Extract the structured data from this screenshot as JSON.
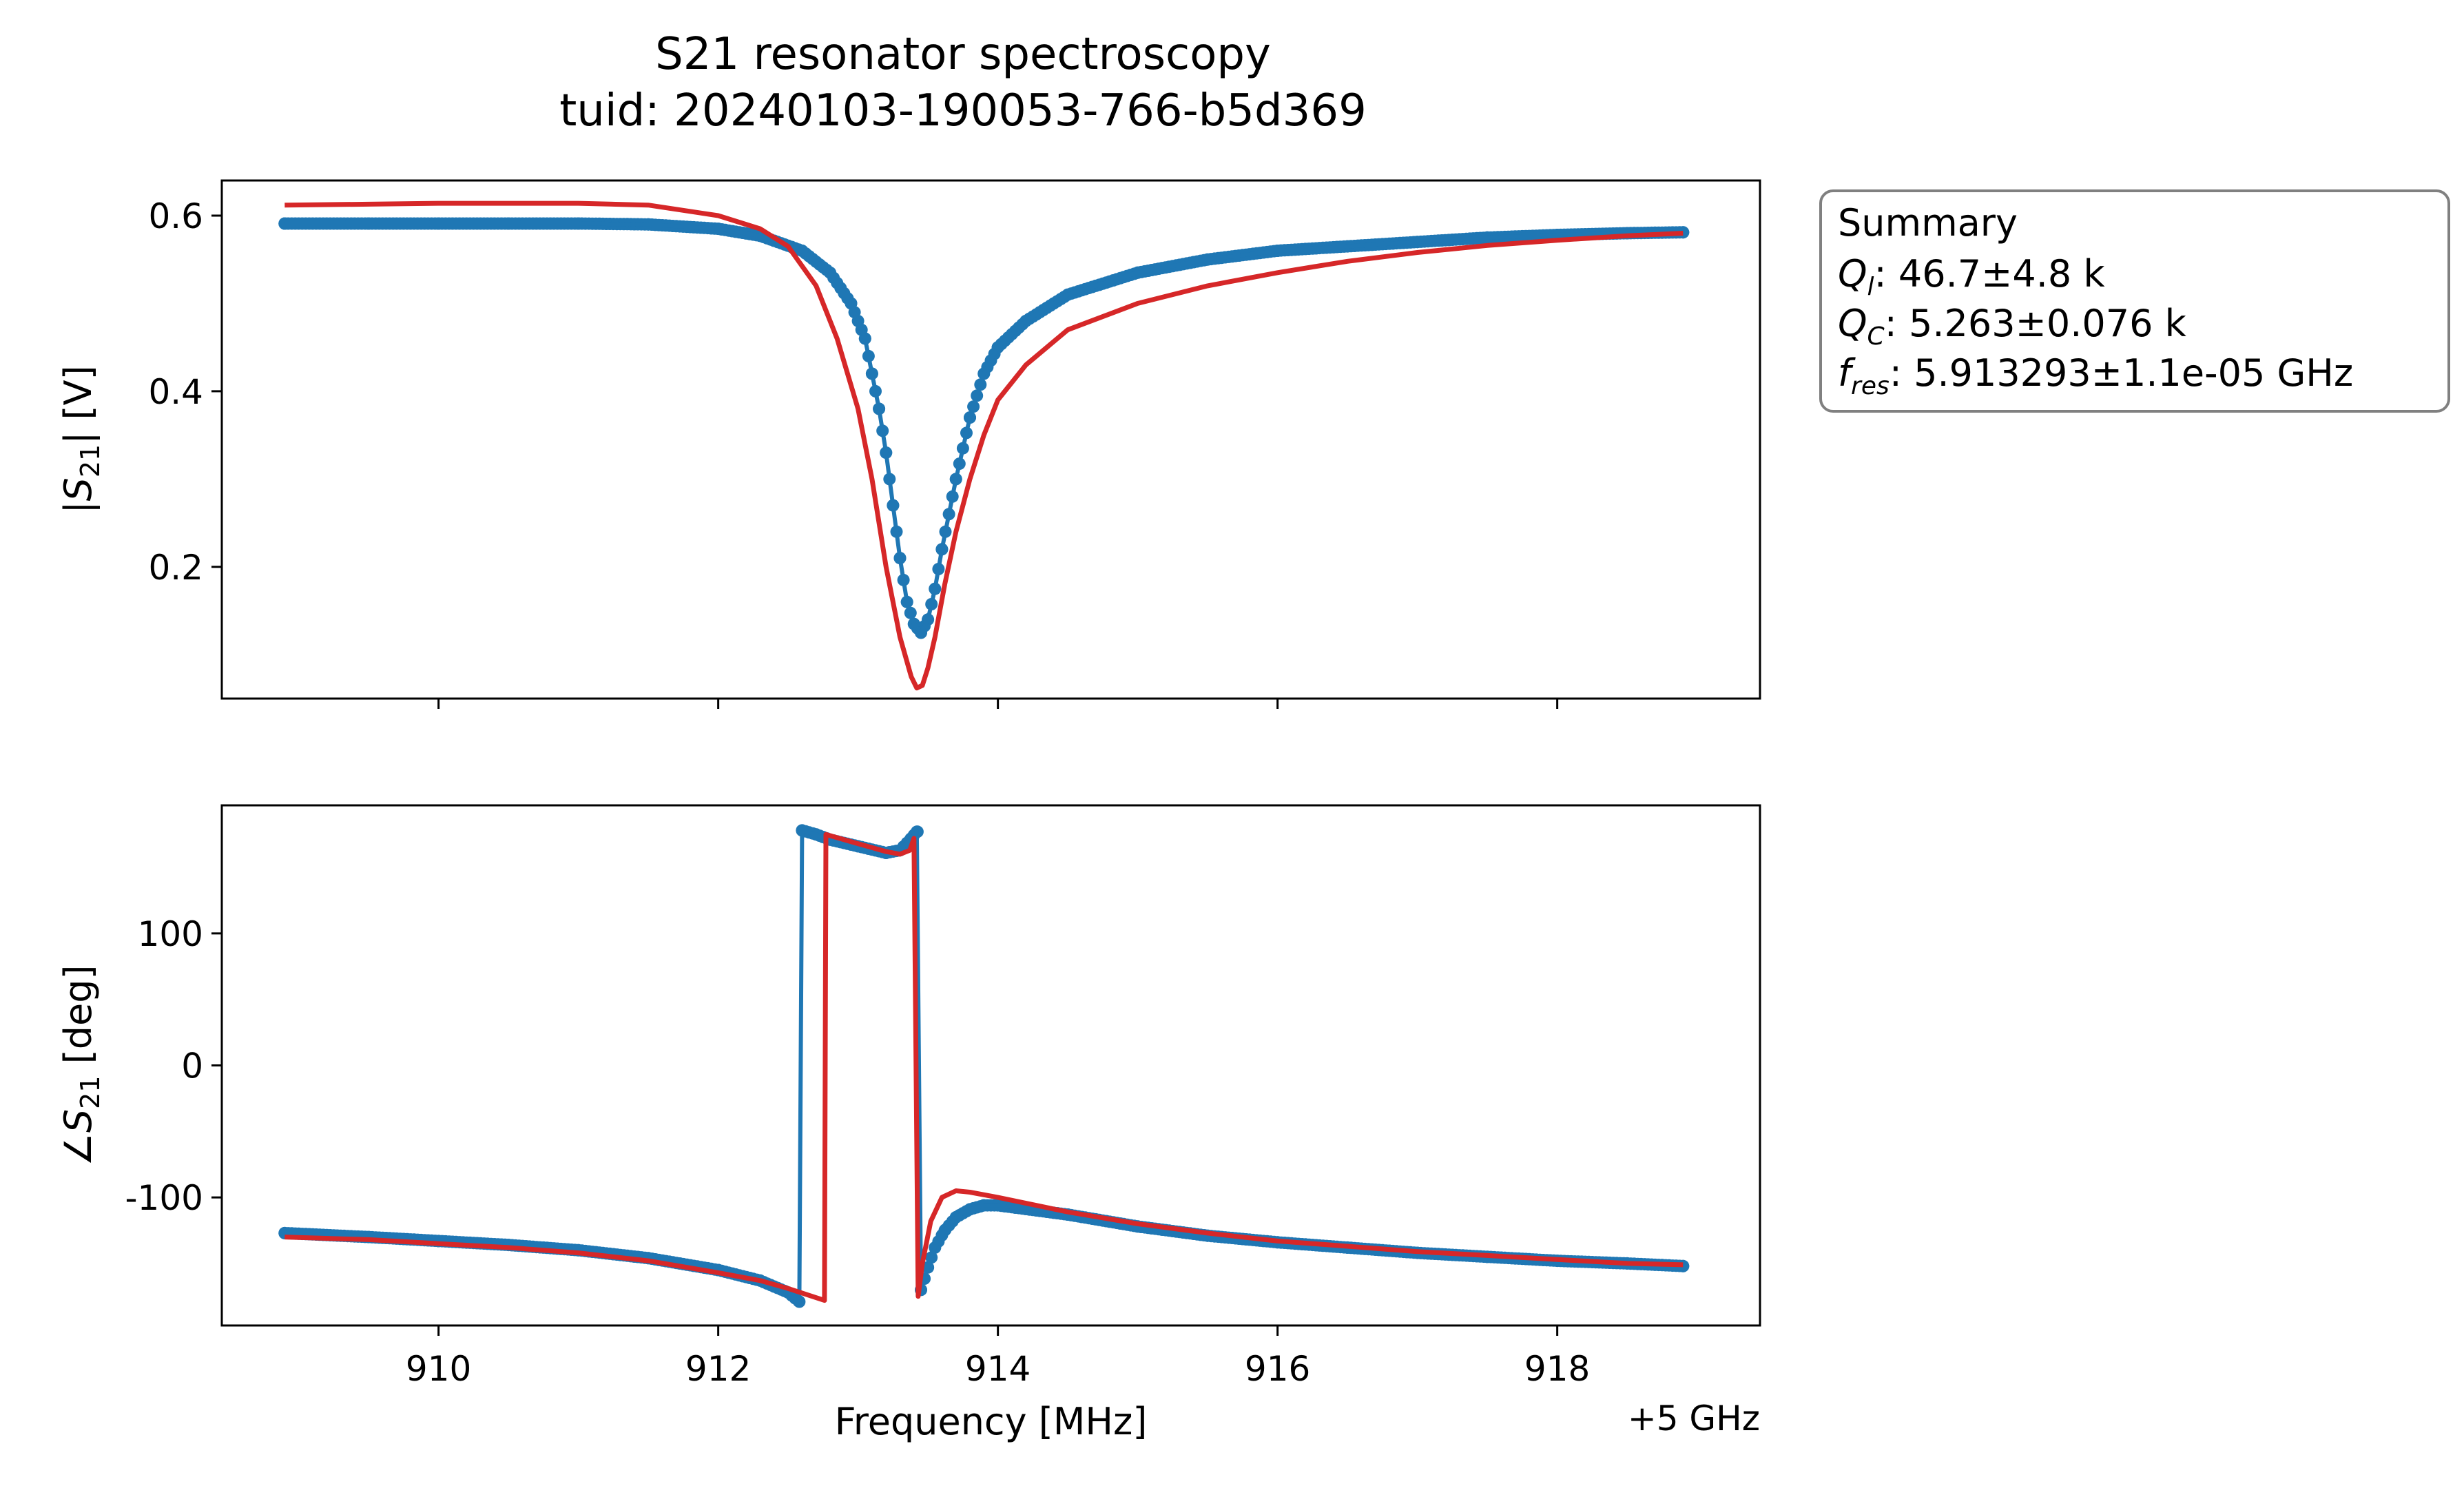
{
  "figure": {
    "title": "S21 resonator spectroscopy",
    "subtitle": "tuid: 20240103-190053-766-b5d369"
  },
  "summary": {
    "heading": "Summary",
    "lines": [
      {
        "sym": "Q",
        "sub": "l",
        "text": ": 46.7±4.8 k"
      },
      {
        "sym": "Q",
        "sub": "C",
        "text": ": 5.263±0.076 k"
      },
      {
        "sym": "f",
        "sub": "res",
        "text": ": 5.913293±1.1e-05 GHz"
      }
    ]
  },
  "colors": {
    "data": "#1f77b4",
    "fit": "#d62728",
    "box_edge": "#808080"
  },
  "chart_data": [
    {
      "type": "line",
      "name": "magnitude",
      "ylabel": {
        "pre": "|",
        "sym": "S",
        "sub": "21",
        "post": "| [V]"
      },
      "xlabel": "",
      "xlim": [
        908.45,
        919.45
      ],
      "ylim": [
        0.05,
        0.64
      ],
      "xticks": [
        910,
        912,
        914,
        916,
        918
      ],
      "xticklabels_visible": false,
      "yticks": [
        0.2,
        0.4,
        0.6
      ],
      "yticklabels": [
        "0.2",
        "0.4",
        "0.6"
      ],
      "x_range": [
        908.9,
        918.9
      ],
      "markers": true,
      "series": [
        {
          "role": "data",
          "points": [
            [
              908.9,
              0.591
            ],
            [
              909.5,
              0.591
            ],
            [
              910,
              0.591
            ],
            [
              910.5,
              0.591
            ],
            [
              911,
              0.591
            ],
            [
              911.5,
              0.59
            ],
            [
              912,
              0.585
            ],
            [
              912.3,
              0.577
            ],
            [
              912.6,
              0.56
            ],
            [
              912.8,
              0.535
            ],
            [
              912.95,
              0.5
            ],
            [
              913.05,
              0.46
            ],
            [
              913.1,
              0.42
            ],
            [
              913.15,
              0.38
            ],
            [
              913.2,
              0.33
            ],
            [
              913.25,
              0.27
            ],
            [
              913.3,
              0.21
            ],
            [
              913.35,
              0.16
            ],
            [
              913.4,
              0.135
            ],
            [
              913.45,
              0.125
            ],
            [
              913.5,
              0.14
            ],
            [
              913.55,
              0.175
            ],
            [
              913.6,
              0.22
            ],
            [
              913.7,
              0.3
            ],
            [
              913.8,
              0.37
            ],
            [
              913.9,
              0.42
            ],
            [
              914.0,
              0.45
            ],
            [
              914.2,
              0.48
            ],
            [
              914.5,
              0.51
            ],
            [
              915,
              0.535
            ],
            [
              915.5,
              0.55
            ],
            [
              916,
              0.56
            ],
            [
              916.5,
              0.565
            ],
            [
              917,
              0.57
            ],
            [
              917.5,
              0.575
            ],
            [
              918,
              0.578
            ],
            [
              918.5,
              0.58
            ],
            [
              918.9,
              0.581
            ]
          ]
        },
        {
          "role": "fit",
          "points": [
            [
              908.9,
              0.612
            ],
            [
              909.5,
              0.613
            ],
            [
              910,
              0.614
            ],
            [
              910.5,
              0.614
            ],
            [
              911,
              0.614
            ],
            [
              911.5,
              0.612
            ],
            [
              912,
              0.6
            ],
            [
              912.3,
              0.585
            ],
            [
              912.5,
              0.565
            ],
            [
              912.7,
              0.52
            ],
            [
              912.85,
              0.46
            ],
            [
              913,
              0.38
            ],
            [
              913.1,
              0.3
            ],
            [
              913.2,
              0.2
            ],
            [
              913.3,
              0.12
            ],
            [
              913.38,
              0.075
            ],
            [
              913.42,
              0.062
            ],
            [
              913.46,
              0.065
            ],
            [
              913.5,
              0.085
            ],
            [
              913.55,
              0.12
            ],
            [
              913.62,
              0.18
            ],
            [
              913.7,
              0.24
            ],
            [
              913.8,
              0.3
            ],
            [
              913.9,
              0.35
            ],
            [
              914.0,
              0.39
            ],
            [
              914.2,
              0.43
            ],
            [
              914.5,
              0.47
            ],
            [
              915,
              0.5
            ],
            [
              915.5,
              0.52
            ],
            [
              916,
              0.535
            ],
            [
              916.5,
              0.548
            ],
            [
              917,
              0.558
            ],
            [
              917.5,
              0.566
            ],
            [
              918,
              0.572
            ],
            [
              918.5,
              0.577
            ],
            [
              918.9,
              0.58
            ]
          ]
        }
      ]
    },
    {
      "type": "line",
      "name": "phase",
      "ylabel": {
        "pre": "∠",
        "sym": "S",
        "sub": "21",
        "post": " [deg]"
      },
      "xlabel": "Frequency [MHz]",
      "offset_label": "+5 GHz",
      "xlim": [
        908.45,
        919.45
      ],
      "ylim": [
        -197,
        197
      ],
      "xticks": [
        910,
        912,
        914,
        916,
        918
      ],
      "xticklabels": [
        "910",
        "912",
        "914",
        "916",
        "918"
      ],
      "yticks": [
        -100,
        0,
        100
      ],
      "yticklabels": [
        "-100",
        "0",
        "100"
      ],
      "x_range": [
        908.9,
        918.9
      ],
      "markers": true,
      "series": [
        {
          "role": "data",
          "points": [
            [
              908.9,
              -127
            ],
            [
              909.5,
              -130
            ],
            [
              910,
              -133
            ],
            [
              910.5,
              -136
            ],
            [
              911,
              -140
            ],
            [
              911.5,
              -146
            ],
            [
              912,
              -155
            ],
            [
              912.3,
              -163
            ],
            [
              912.5,
              -172
            ],
            [
              912.58,
              -179
            ],
            [
              912.6,
              178
            ],
            [
              912.7,
              175
            ],
            [
              912.8,
              171
            ],
            [
              913,
              166
            ],
            [
              913.2,
              161
            ],
            [
              913.3,
              163
            ],
            [
              913.38,
              172
            ],
            [
              913.42,
              177
            ],
            [
              913.45,
              -170
            ],
            [
              913.5,
              -153
            ],
            [
              913.55,
              -138
            ],
            [
              913.62,
              -125
            ],
            [
              913.7,
              -115
            ],
            [
              913.8,
              -109
            ],
            [
              913.9,
              -106
            ],
            [
              914,
              -106
            ],
            [
              914.5,
              -113
            ],
            [
              915,
              -122
            ],
            [
              915.5,
              -129
            ],
            [
              916,
              -134
            ],
            [
              916.5,
              -138
            ],
            [
              917,
              -142
            ],
            [
              917.5,
              -145
            ],
            [
              918,
              -148
            ],
            [
              918.5,
              -150
            ],
            [
              918.9,
              -152
            ]
          ]
        },
        {
          "role": "fit",
          "points": [
            [
              908.9,
              -130
            ],
            [
              909.5,
              -132
            ],
            [
              910,
              -135
            ],
            [
              910.5,
              -138
            ],
            [
              911,
              -142
            ],
            [
              911.5,
              -148
            ],
            [
              912,
              -157
            ],
            [
              912.3,
              -163
            ],
            [
              912.5,
              -169
            ],
            [
              912.76,
              -178
            ],
            [
              912.77,
              175
            ],
            [
              913,
              168
            ],
            [
              913.2,
              162
            ],
            [
              913.3,
              160
            ],
            [
              913.37,
              163
            ],
            [
              913.4,
              172
            ],
            [
              913.43,
              -175
            ],
            [
              913.46,
              -150
            ],
            [
              913.52,
              -118
            ],
            [
              913.6,
              -100
            ],
            [
              913.7,
              -95
            ],
            [
              913.8,
              -96
            ],
            [
              914,
              -100
            ],
            [
              914.5,
              -111
            ],
            [
              915,
              -120
            ],
            [
              915.5,
              -127
            ],
            [
              916,
              -133
            ],
            [
              916.5,
              -137
            ],
            [
              917,
              -141
            ],
            [
              917.5,
              -144
            ],
            [
              918,
              -147
            ],
            [
              918.5,
              -150
            ],
            [
              918.9,
              -151
            ]
          ]
        }
      ]
    }
  ]
}
